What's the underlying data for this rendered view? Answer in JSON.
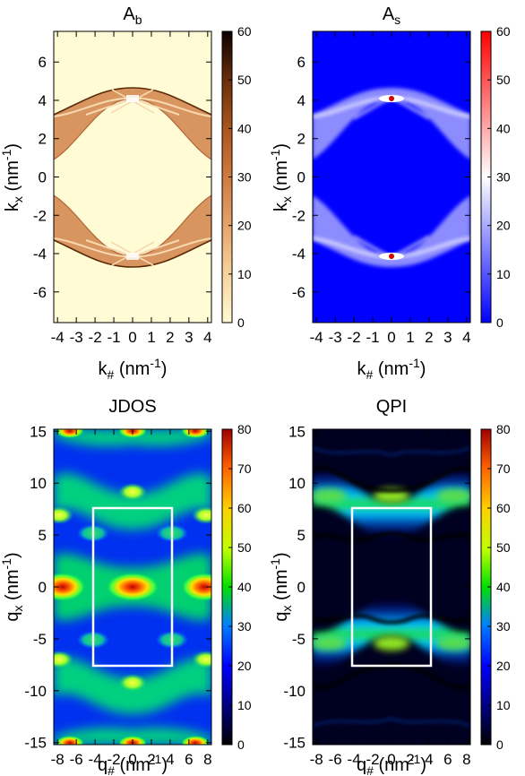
{
  "chart_data": [
    {
      "type": "heatmap",
      "title": "A",
      "title_sub": "b",
      "x_var": "k",
      "x_sub": "#",
      "y_var": "k",
      "y_sub": "x",
      "unit_open": " (nm",
      "unit_sup": "-1",
      "unit_close": ")",
      "xlim": [
        -4.2,
        4.2
      ],
      "ylim": [
        -7.6,
        7.6
      ],
      "xticks": [
        "-4",
        "-3",
        "-2",
        "-1",
        "0",
        "1",
        "2",
        "3",
        "4"
      ],
      "yticks": [
        "6",
        "4",
        "2",
        "0",
        "-2",
        "-4",
        "-6"
      ],
      "colorbar": {
        "range": [
          0,
          60
        ],
        "ticks": [
          "60",
          "50",
          "40",
          "30",
          "20",
          "10",
          "0"
        ],
        "colormap": "white-orange-brown-black"
      }
    },
    {
      "type": "heatmap",
      "title": "A",
      "title_sub": "s",
      "x_var": "k",
      "x_sub": "#",
      "y_var": "k",
      "y_sub": "x",
      "unit_open": " (nm",
      "unit_sup": "-1",
      "unit_close": ")",
      "xlim": [
        -4.2,
        4.2
      ],
      "ylim": [
        -7.6,
        7.6
      ],
      "xticks": [
        "-4",
        "-3",
        "-2",
        "-1",
        "0",
        "1",
        "2",
        "3",
        "4"
      ],
      "yticks": [
        "6",
        "4",
        "2",
        "0",
        "-2",
        "-4",
        "-6"
      ],
      "colorbar": {
        "range": [
          0,
          60
        ],
        "ticks": [
          "60",
          "50",
          "40",
          "30",
          "20",
          "10",
          "0"
        ],
        "colormap": "blue-white-red"
      }
    },
    {
      "type": "heatmap",
      "title": "JDOS",
      "title_sub": "",
      "x_var": "q",
      "x_sub": "#",
      "y_var": "q",
      "y_sub": "x",
      "unit_open": " (nm",
      "unit_sup": "-1",
      "unit_close": ")",
      "xlim": [
        -8.4,
        8.4
      ],
      "ylim": [
        -15.2,
        15.2
      ],
      "xticks": [
        "-8",
        "-6",
        "-4",
        "-2",
        "0",
        "2",
        "4",
        "6",
        "8"
      ],
      "yticks": [
        "15",
        "10",
        "5",
        "0",
        "-5",
        "-10",
        "-15"
      ],
      "colorbar": {
        "range": [
          0,
          80
        ],
        "ticks": [
          "80",
          "70",
          "60",
          "50",
          "40",
          "30",
          "20",
          "10",
          "0"
        ],
        "colormap": "jet"
      },
      "overlay_rect": {
        "x": [
          -4.2,
          4.2
        ],
        "y": [
          -7.6,
          7.6
        ],
        "color": "#ffffff"
      }
    },
    {
      "type": "heatmap",
      "title": "QPI",
      "title_sub": "",
      "x_var": "q",
      "x_sub": "#",
      "y_var": "q",
      "y_sub": "x",
      "unit_open": " (nm",
      "unit_sup": "-1",
      "unit_close": ")",
      "xlim": [
        -8.4,
        8.4
      ],
      "ylim": [
        -15.2,
        15.2
      ],
      "xticks": [
        "-8",
        "-6",
        "-4",
        "-2",
        "0",
        "2",
        "4",
        "6",
        "8"
      ],
      "yticks": [
        "15",
        "10",
        "5",
        "0",
        "-5",
        "-10",
        "-15"
      ],
      "colorbar": {
        "range": [
          0,
          80
        ],
        "ticks": [
          "80",
          "70",
          "60",
          "50",
          "40",
          "30",
          "20",
          "10",
          "0"
        ],
        "colormap": "jet"
      },
      "overlay_rect": {
        "x": [
          -4.2,
          4.2
        ],
        "y": [
          -7.6,
          7.6
        ],
        "color": "#ffffff"
      }
    }
  ]
}
